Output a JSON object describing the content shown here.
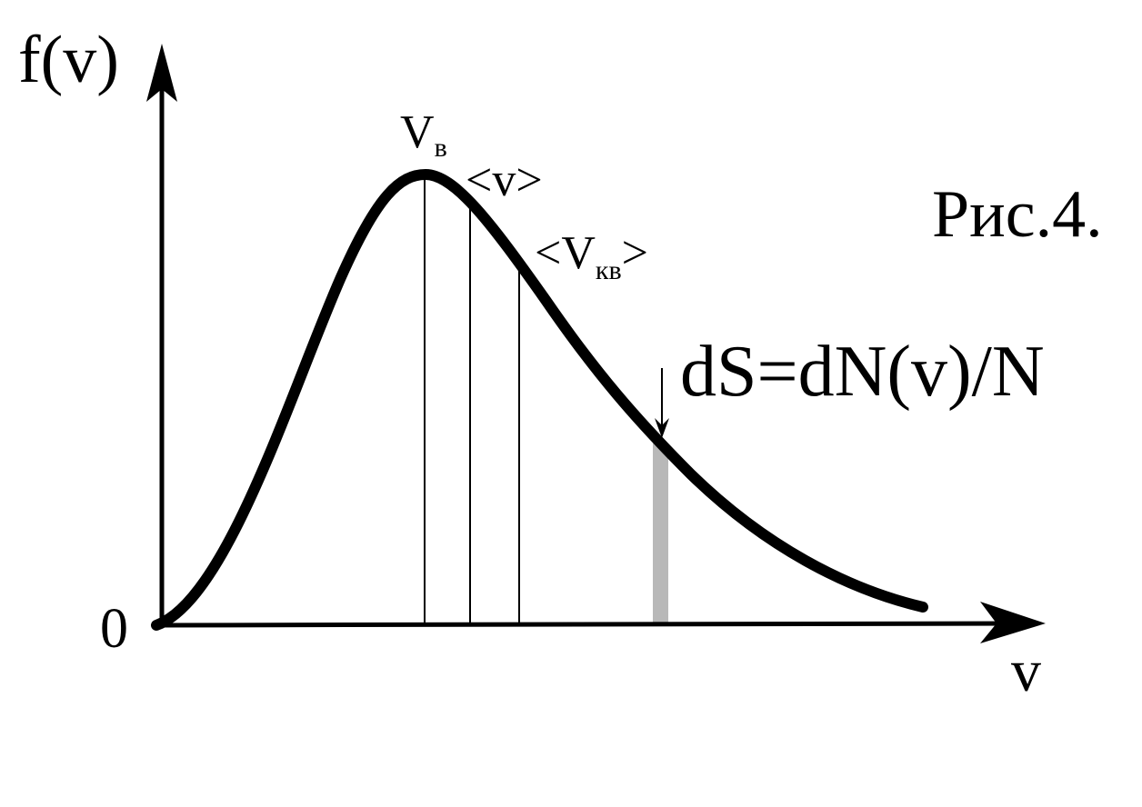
{
  "axes": {
    "y_label": "f(v)",
    "x_label": "v",
    "origin": "0"
  },
  "markers": [
    {
      "label": "V",
      "subscript": "в"
    },
    {
      "label": "<v>"
    },
    {
      "prefix": "<V",
      "subscript": "кв",
      "suffix": ">"
    }
  ],
  "annotation": "dS=dN(v)/N",
  "caption": "Рис.4."
}
